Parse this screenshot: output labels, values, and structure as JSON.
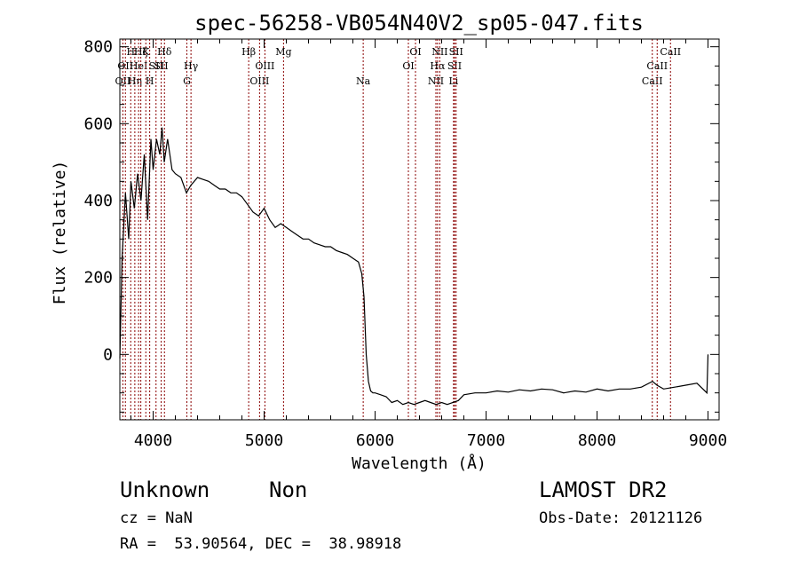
{
  "chart_data": {
    "type": "line",
    "title": "spec-56258-VB054N40V2_sp05-047.fits",
    "xlabel": "Wavelength (Å)",
    "ylabel": "Flux (relative)",
    "xlim": [
      3700,
      9100
    ],
    "ylim": [
      -170,
      820
    ],
    "xticks": [
      4000,
      5000,
      6000,
      7000,
      8000,
      9000
    ],
    "yticks": [
      0,
      200,
      400,
      600,
      800
    ],
    "grid": false,
    "line_color": "#000000",
    "marker_color": "#8b0000",
    "series": [
      {
        "x": [
          3700,
          3720,
          3750,
          3780,
          3800,
          3830,
          3860,
          3890,
          3920,
          3950,
          3980,
          4000,
          4030,
          4060,
          4080,
          4100,
          4130,
          4170,
          4200,
          4250,
          4300,
          4340,
          4400,
          4450,
          4500,
          4550,
          4600,
          4650,
          4700,
          4750,
          4800,
          4850,
          4900,
          4950,
          5000,
          5050,
          5100,
          5150,
          5200,
          5250,
          5300,
          5350,
          5400,
          5450,
          5500,
          5550,
          5600,
          5650,
          5700,
          5750,
          5800,
          5850,
          5880,
          5900,
          5920,
          5940,
          5960,
          5980,
          6000,
          6050,
          6100,
          6150,
          6200,
          6250,
          6300,
          6350,
          6400,
          6450,
          6500,
          6550,
          6600,
          6650,
          6700,
          6750,
          6800,
          6900,
          7000,
          7100,
          7200,
          7300,
          7400,
          7500,
          7600,
          7700,
          7800,
          7900,
          8000,
          8100,
          8200,
          8300,
          8400,
          8500,
          8540,
          8600,
          8700,
          8800,
          8900,
          8990,
          9000
        ],
        "y": [
          -10,
          250,
          420,
          300,
          450,
          380,
          470,
          400,
          520,
          350,
          560,
          480,
          560,
          520,
          590,
          500,
          560,
          480,
          470,
          460,
          420,
          440,
          460,
          455,
          450,
          440,
          430,
          430,
          420,
          420,
          410,
          390,
          370,
          360,
          380,
          350,
          330,
          340,
          330,
          320,
          310,
          300,
          300,
          290,
          285,
          280,
          280,
          270,
          265,
          260,
          250,
          240,
          210,
          150,
          0,
          -70,
          -95,
          -100,
          -100,
          -105,
          -110,
          -125,
          -120,
          -130,
          -125,
          -130,
          -125,
          -120,
          -125,
          -130,
          -125,
          -130,
          -125,
          -120,
          -105,
          -100,
          -100,
          -95,
          -98,
          -92,
          -95,
          -90,
          -92,
          -100,
          -95,
          -98,
          -90,
          -95,
          -90,
          -90,
          -85,
          -70,
          -80,
          -90,
          -85,
          -80,
          -75,
          -100,
          0
        ]
      }
    ],
    "line_markers": [
      {
        "x": 3727,
        "labels": [
          "OII"
        ],
        "row": 3
      },
      {
        "x": 3750,
        "labels": [
          "OII"
        ],
        "row": 2
      },
      {
        "x": 3798,
        "labels": [
          "H"
        ],
        "row": 1
      },
      {
        "x": 3835,
        "labels": [
          "Hη"
        ],
        "row": 3
      },
      {
        "x": 3869,
        "labels": [
          "HeI"
        ],
        "row": 2
      },
      {
        "x": 3889,
        "labels": [
          "Hζ"
        ],
        "row": 1
      },
      {
        "x": 3934,
        "labels": [
          "K"
        ],
        "row": 1
      },
      {
        "x": 3969,
        "labels": [
          "H"
        ],
        "row": 3
      },
      {
        "x": 4026,
        "labels": [
          "SII"
        ],
        "row": 2
      },
      {
        "x": 4072,
        "labels": [
          "SII"
        ],
        "row": 2
      },
      {
        "x": 4102,
        "labels": [
          "Hδ"
        ],
        "row": 1
      },
      {
        "x": 4304,
        "labels": [
          "G"
        ],
        "row": 3
      },
      {
        "x": 4341,
        "labels": [
          "Hγ"
        ],
        "row": 2
      },
      {
        "x": 4861,
        "labels": [
          "Hβ"
        ],
        "row": 1
      },
      {
        "x": 4959,
        "labels": [
          "OIII"
        ],
        "row": 3
      },
      {
        "x": 5007,
        "labels": [
          "OIII"
        ],
        "row": 2
      },
      {
        "x": 5175,
        "labels": [
          "Mg"
        ],
        "row": 1
      },
      {
        "x": 5893,
        "labels": [
          "Na"
        ],
        "row": 3
      },
      {
        "x": 6300,
        "labels": [
          "OI"
        ],
        "row": 2
      },
      {
        "x": 6364,
        "labels": [
          "OI"
        ],
        "row": 1
      },
      {
        "x": 6548,
        "labels": [
          "NII"
        ],
        "row": 3
      },
      {
        "x": 6563,
        "labels": [
          "Hα"
        ],
        "row": 2
      },
      {
        "x": 6583,
        "labels": [
          "NII"
        ],
        "row": 1
      },
      {
        "x": 6707,
        "labels": [
          "Li"
        ],
        "row": 3
      },
      {
        "x": 6716,
        "labels": [
          "SII"
        ],
        "row": 2
      },
      {
        "x": 6730,
        "labels": [
          "SII"
        ],
        "row": 1
      },
      {
        "x": 8498,
        "labels": [
          "CaII"
        ],
        "row": 3
      },
      {
        "x": 8542,
        "labels": [
          "CaII"
        ],
        "row": 2
      },
      {
        "x": 8662,
        "labels": [
          "CaII"
        ],
        "row": 1
      }
    ]
  },
  "info": {
    "class": "Unknown",
    "subclass": "Non",
    "cz": "cz = NaN",
    "coords": "RA =  53.90564, DEC =  38.98918",
    "survey": "LAMOST DR2",
    "obsdate": "Obs-Date: 20121126"
  }
}
